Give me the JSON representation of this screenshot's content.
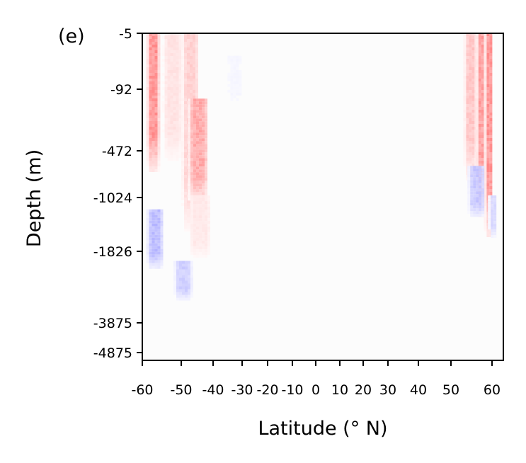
{
  "chart_data": {
    "type": "heatmap",
    "panel_label": "(e)",
    "xlabel": "Latitude (° N)",
    "ylabel": "Depth (m)",
    "xlim": [
      -60,
      63
    ],
    "x_ticks": [
      {
        "value": -60,
        "label": "-60"
      },
      {
        "value": -50,
        "label": "-50"
      },
      {
        "value": -40,
        "label": "-40"
      },
      {
        "value": -30,
        "label": "-30"
      },
      {
        "value": -20,
        "label": "-20"
      },
      {
        "value": -10,
        "label": "-10"
      },
      {
        "value": 0,
        "label": "0"
      },
      {
        "value": 10,
        "label": "10"
      },
      {
        "value": 20,
        "label": "20"
      },
      {
        "value": 30,
        "label": "30"
      },
      {
        "value": 40,
        "label": "40"
      },
      {
        "value": 50,
        "label": "50"
      },
      {
        "value": 60,
        "label": "60"
      }
    ],
    "y_ticks": [
      {
        "value": -5,
        "label": "-5"
      },
      {
        "value": -92,
        "label": "-92"
      },
      {
        "value": -472,
        "label": "-472"
      },
      {
        "value": -1024,
        "label": "-1024"
      },
      {
        "value": -1826,
        "label": "-1826"
      },
      {
        "value": -3875,
        "label": "-3875"
      },
      {
        "value": -4875,
        "label": "-4875"
      }
    ],
    "colormap": {
      "positive": "#ff2020",
      "negative": "#2020ff",
      "zero": "#ffffff"
    },
    "blobs": [
      {
        "lat_min": -59,
        "lat_max": -56,
        "depth_top": -5,
        "depth_bottom": -700,
        "value": 0.55
      },
      {
        "lat_min": -55,
        "lat_max": -50,
        "depth_top": -5,
        "depth_bottom": -600,
        "value": 0.15
      },
      {
        "lat_min": -50,
        "lat_max": -45,
        "depth_top": -5,
        "depth_bottom": -1500,
        "value": 0.25
      },
      {
        "lat_min": -48,
        "lat_max": -42,
        "depth_top": -150,
        "depth_bottom": -1100,
        "value": 0.45
      },
      {
        "lat_min": -48,
        "lat_max": -41,
        "depth_top": -1000,
        "depth_bottom": -2000,
        "value": 0.12
      },
      {
        "lat_min": -59,
        "lat_max": -55,
        "depth_top": -1200,
        "depth_bottom": -2300,
        "value": -0.35
      },
      {
        "lat_min": -52,
        "lat_max": -47,
        "depth_top": -2100,
        "depth_bottom": -3200,
        "value": -0.25
      },
      {
        "lat_min": -36,
        "lat_max": -30,
        "depth_top": -40,
        "depth_bottom": -200,
        "value": -0.05
      },
      {
        "lat_min": 53,
        "lat_max": 56,
        "depth_top": -5,
        "depth_bottom": -800,
        "value": 0.3
      },
      {
        "lat_min": 56,
        "lat_max": 58,
        "depth_top": -5,
        "depth_bottom": -1300,
        "value": 0.5
      },
      {
        "lat_min": 58,
        "lat_max": 60,
        "depth_top": -5,
        "depth_bottom": -1600,
        "value": 0.55
      },
      {
        "lat_min": 54,
        "lat_max": 58,
        "depth_top": -650,
        "depth_bottom": -1300,
        "value": -0.3
      },
      {
        "lat_min": 59,
        "lat_max": 61,
        "depth_top": -1000,
        "depth_bottom": -1600,
        "value": -0.2
      }
    ]
  }
}
